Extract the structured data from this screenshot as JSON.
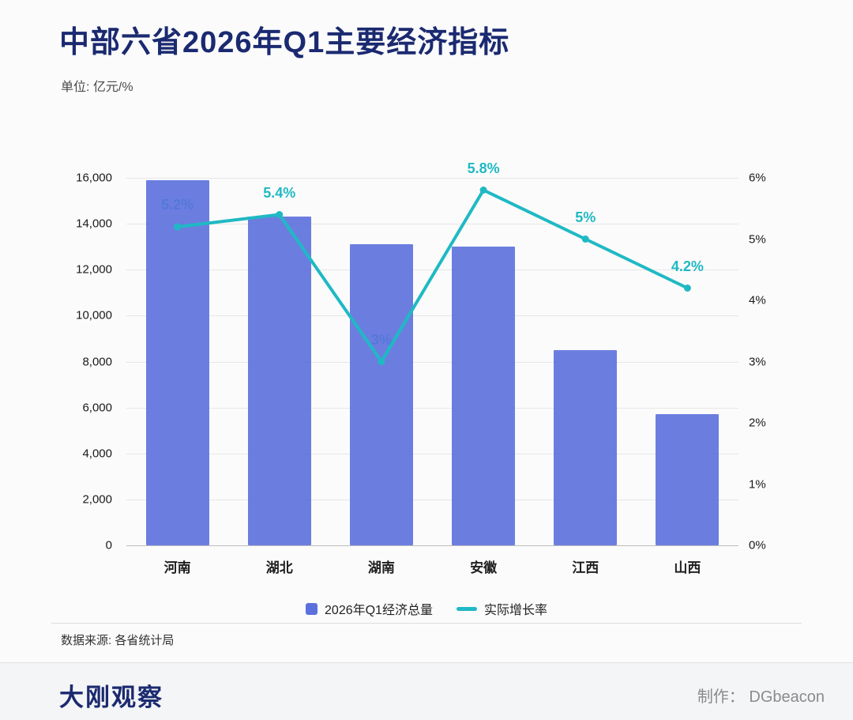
{
  "colors": {
    "brand_navy": "#1b2a70",
    "bar_blue": "#5b70dd",
    "line_teal": "#1fb9c4"
  },
  "header": {
    "title": "中部六省2026年Q1主要经济指标",
    "subtitle": "单位: 亿元/%"
  },
  "chart_data": {
    "type": "bar+line",
    "title": "中部六省2026年Q1主要经济指标",
    "categories": [
      "河南",
      "湖北",
      "湖南",
      "安徽",
      "江西",
      "山西"
    ],
    "series": [
      {
        "name": "2026年Q1经济总量",
        "type": "bar",
        "axis": "left",
        "color": "#5b70dd",
        "values": [
          15900,
          14300,
          13100,
          13000,
          8500,
          5700
        ]
      },
      {
        "name": "实际增长率",
        "type": "line",
        "axis": "right",
        "color": "#1fb9c4",
        "values": [
          5.2,
          5.4,
          3,
          5.8,
          5,
          4.2
        ],
        "labels": [
          "5.2%",
          "5.4%",
          "3%",
          "5.8%",
          "5%",
          "4.2%"
        ]
      }
    ],
    "left_axis": {
      "min": 0,
      "max": 16000,
      "step": 2000,
      "tick_labels": [
        "0",
        "2,000",
        "4,000",
        "6,000",
        "8,000",
        "10,000",
        "12,000",
        "14,000",
        "16,000"
      ]
    },
    "right_axis": {
      "min": 0,
      "max": 6,
      "step": 1,
      "tick_labels": [
        "0%",
        "1%",
        "2%",
        "3%",
        "4%",
        "5%",
        "6%"
      ]
    },
    "grid": true,
    "legend_position": "bottom"
  },
  "legend": {
    "items": [
      {
        "label": "2026年Q1经济总量",
        "color": "#5b70dd",
        "marker": "square"
      },
      {
        "label": "实际增长率",
        "color": "#1fb9c4",
        "marker": "line"
      }
    ]
  },
  "source": {
    "text": "数据来源: 各省统计局"
  },
  "footer": {
    "logo": "大刚观察",
    "credit_label": "制作：",
    "credit_value": "DGbeacon"
  }
}
